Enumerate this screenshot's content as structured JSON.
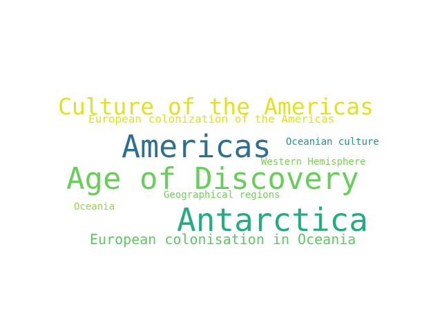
{
  "words": [
    {
      "key": "culture-of-the-americas",
      "text": "Culture of the Americas",
      "color": "#e2e020"
    },
    {
      "key": "european-colonization-of-the-americas",
      "text": "European colonization of the Americas",
      "color": "#dde41c"
    },
    {
      "key": "americas",
      "text": "Americas",
      "color": "#2d6f8e"
    },
    {
      "key": "oceanian-culture",
      "text": "Oceanian culture",
      "color": "#24908c"
    },
    {
      "key": "western-hemisphere",
      "text": "Western Hemisphere",
      "color": "#78d151"
    },
    {
      "key": "age-of-discovery",
      "text": "Age of Discovery",
      "color": "#69cd5b"
    },
    {
      "key": "geographical-regions",
      "text": "Geographical regions",
      "color": "#70cf57"
    },
    {
      "key": "oceania",
      "text": "Oceania",
      "color": "#90d743"
    },
    {
      "key": "antarctica",
      "text": "Antarctica",
      "color": "#25ab82"
    },
    {
      "key": "european-colonisation-in-oceania",
      "text": "European colonisation in Oceania",
      "color": "#5cc863"
    }
  ]
}
